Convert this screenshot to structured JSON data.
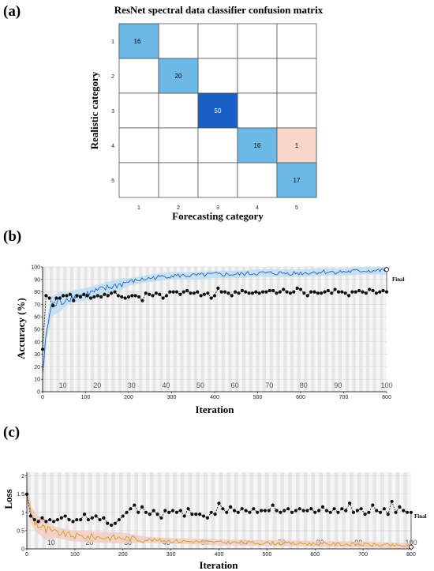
{
  "panels": {
    "a": "(a)",
    "b": "(b)",
    "c": "(c)"
  },
  "colors": {
    "cm_high": "#1a5fc4",
    "cm_mid": "#6cb8e6",
    "cm_off": "#f7d7c8",
    "acc_train": "#2d5dc8",
    "acc_band": "#b9dff5",
    "loss_train": "#c9a21a",
    "loss_band": "#f5c9c2",
    "val_marker": "#111111"
  },
  "chart_data": [
    {
      "type": "heatmap",
      "title": "ResNet spectral data classifier confusion matrix",
      "xlabel": "Forecasting category",
      "ylabel": "Realistic category",
      "x_categories": [
        "1",
        "2",
        "3",
        "4",
        "5"
      ],
      "y_categories": [
        "1",
        "2",
        "3",
        "4",
        "5"
      ],
      "cells": [
        {
          "row": "1",
          "col": "1",
          "value": 16
        },
        {
          "row": "2",
          "col": "2",
          "value": 20
        },
        {
          "row": "3",
          "col": "3",
          "value": 50
        },
        {
          "row": "4",
          "col": "4",
          "value": 16
        },
        {
          "row": "4",
          "col": "5",
          "value": 1
        },
        {
          "row": "5",
          "col": "5",
          "value": 17
        }
      ]
    },
    {
      "type": "line",
      "xlabel": "Iteration",
      "ylabel": "Accuracy (%)",
      "xlim": [
        0,
        800
      ],
      "ylim": [
        0,
        100
      ],
      "xticks": [
        0,
        100,
        200,
        300,
        400,
        500,
        600,
        700,
        800
      ],
      "yticks": [
        0,
        10,
        20,
        30,
        40,
        50,
        60,
        70,
        80,
        90,
        100
      ],
      "epoch_labels": [
        "10",
        "20",
        "30",
        "40",
        "50",
        "60",
        "70",
        "80",
        "90",
        "100"
      ],
      "final_label": "Final",
      "series": [
        {
          "style": "training",
          "x": [
            0,
            10,
            20,
            40,
            60,
            80,
            100,
            120,
            150,
            180,
            200,
            250,
            300,
            350,
            400,
            450,
            500,
            550,
            600,
            650,
            700,
            750,
            800
          ],
          "y": [
            15,
            50,
            68,
            72,
            75,
            77,
            78,
            80,
            83,
            86,
            88,
            91,
            93,
            93,
            94,
            94,
            95,
            95,
            95,
            96,
            96,
            97,
            97
          ]
        },
        {
          "style": "validation",
          "x": [
            0,
            8,
            16,
            24,
            32,
            40,
            48,
            56,
            64,
            72,
            80,
            88,
            96,
            104,
            112,
            120,
            128,
            136,
            144,
            152,
            160,
            168,
            176,
            184,
            192,
            200,
            208,
            216,
            224,
            232,
            240,
            248,
            256,
            264,
            272,
            280,
            288,
            296,
            304,
            312,
            320,
            328,
            336,
            344,
            352,
            360,
            368,
            376,
            384,
            392,
            400,
            408,
            416,
            424,
            432,
            440,
            448,
            456,
            464,
            472,
            480,
            488,
            496,
            504,
            512,
            520,
            528,
            536,
            544,
            552,
            560,
            568,
            576,
            584,
            592,
            600,
            608,
            616,
            624,
            632,
            640,
            648,
            656,
            664,
            672,
            680,
            688,
            696,
            704,
            712,
            720,
            728,
            736,
            744,
            752,
            760,
            768,
            776,
            784,
            792,
            800
          ],
          "y": [
            34,
            77,
            75,
            69,
            75,
            75,
            77,
            77,
            78,
            73,
            77,
            76,
            78,
            77,
            75,
            76,
            77,
            76,
            78,
            77,
            79,
            80,
            77,
            76,
            75,
            76,
            77,
            77,
            76,
            73,
            79,
            78,
            77,
            79,
            78,
            75,
            77,
            80,
            80,
            80,
            78,
            80,
            81,
            79,
            79,
            80,
            77,
            78,
            79,
            75,
            77,
            83,
            80,
            80,
            79,
            77,
            80,
            79,
            81,
            80,
            79,
            79,
            80,
            79,
            80,
            80,
            81,
            81,
            79,
            80,
            82,
            80,
            79,
            80,
            83,
            82,
            79,
            77,
            80,
            80,
            79,
            79,
            80,
            81,
            79,
            82,
            80,
            80,
            79,
            77,
            80,
            80,
            81,
            80,
            79,
            82,
            81,
            79,
            80,
            81,
            80
          ]
        }
      ]
    },
    {
      "type": "line",
      "xlabel": "Iteration",
      "ylabel": "Loss",
      "xlim": [
        0,
        800
      ],
      "ylim": [
        0,
        2.1
      ],
      "xticks": [
        0,
        100,
        200,
        300,
        400,
        500,
        600,
        700,
        800
      ],
      "yticks": [
        0,
        0.5,
        1,
        1.5,
        2
      ],
      "epoch_labels": [
        "10",
        "20",
        "30",
        "40",
        "50",
        "60",
        "70",
        "80",
        "90",
        "100"
      ],
      "final_label": "Final",
      "series": [
        {
          "style": "training",
          "x": [
            0,
            5,
            10,
            20,
            30,
            40,
            60,
            80,
            100,
            150,
            200,
            250,
            300,
            350,
            400,
            450,
            500,
            550,
            600,
            650,
            700,
            750,
            800
          ],
          "y": [
            1.55,
            1.2,
            0.9,
            0.7,
            0.6,
            0.5,
            0.45,
            0.4,
            0.35,
            0.32,
            0.3,
            0.25,
            0.22,
            0.2,
            0.18,
            0.17,
            0.16,
            0.15,
            0.14,
            0.13,
            0.12,
            0.1,
            0.08
          ]
        },
        {
          "style": "validation",
          "x": [
            0,
            8,
            16,
            24,
            32,
            40,
            48,
            56,
            64,
            72,
            80,
            88,
            96,
            104,
            112,
            120,
            128,
            136,
            144,
            152,
            160,
            168,
            176,
            184,
            192,
            200,
            208,
            216,
            224,
            232,
            240,
            248,
            256,
            264,
            272,
            280,
            288,
            296,
            304,
            312,
            320,
            328,
            336,
            344,
            352,
            360,
            368,
            376,
            384,
            392,
            400,
            408,
            416,
            424,
            432,
            440,
            448,
            456,
            464,
            472,
            480,
            488,
            496,
            504,
            512,
            520,
            528,
            536,
            544,
            552,
            560,
            568,
            576,
            584,
            592,
            600,
            608,
            616,
            624,
            632,
            640,
            648,
            656,
            664,
            672,
            680,
            688,
            696,
            704,
            712,
            720,
            728,
            736,
            744,
            752,
            760,
            768,
            776,
            784,
            792,
            800
          ],
          "y": [
            1.5,
            0.9,
            0.8,
            0.75,
            0.85,
            0.75,
            0.8,
            0.75,
            0.8,
            0.85,
            0.9,
            0.8,
            0.75,
            0.8,
            0.8,
            0.95,
            0.8,
            0.85,
            0.9,
            0.8,
            0.85,
            0.7,
            0.65,
            0.7,
            0.8,
            0.9,
            1.0,
            1.1,
            1.2,
            1.0,
            1.15,
            1.0,
            0.95,
            1.05,
            0.95,
            0.85,
            1.05,
            1.0,
            1.05,
            1.0,
            1.05,
            0.9,
            1.1,
            0.95,
            0.95,
            0.95,
            0.9,
            0.85,
            1.0,
            0.95,
            1.25,
            1.1,
            1.0,
            1.15,
            1.05,
            1.0,
            1.1,
            1.05,
            1.0,
            1.1,
            1.0,
            1.05,
            1.05,
            1.05,
            1.2,
            1.05,
            1.0,
            1.05,
            1.1,
            1.0,
            1.05,
            1.1,
            1.05,
            1.05,
            1.1,
            1.0,
            1.05,
            1.15,
            1.05,
            1.0,
            1.1,
            1.0,
            1.1,
            1.05,
            1.25,
            1.0,
            1.05,
            1.1,
            0.95,
            1.0,
            1.2,
            1.05,
            1.0,
            1.1,
            0.95,
            1.3,
            1.0,
            1.15,
            1.05,
            1.0,
            1.0
          ]
        }
      ]
    }
  ]
}
